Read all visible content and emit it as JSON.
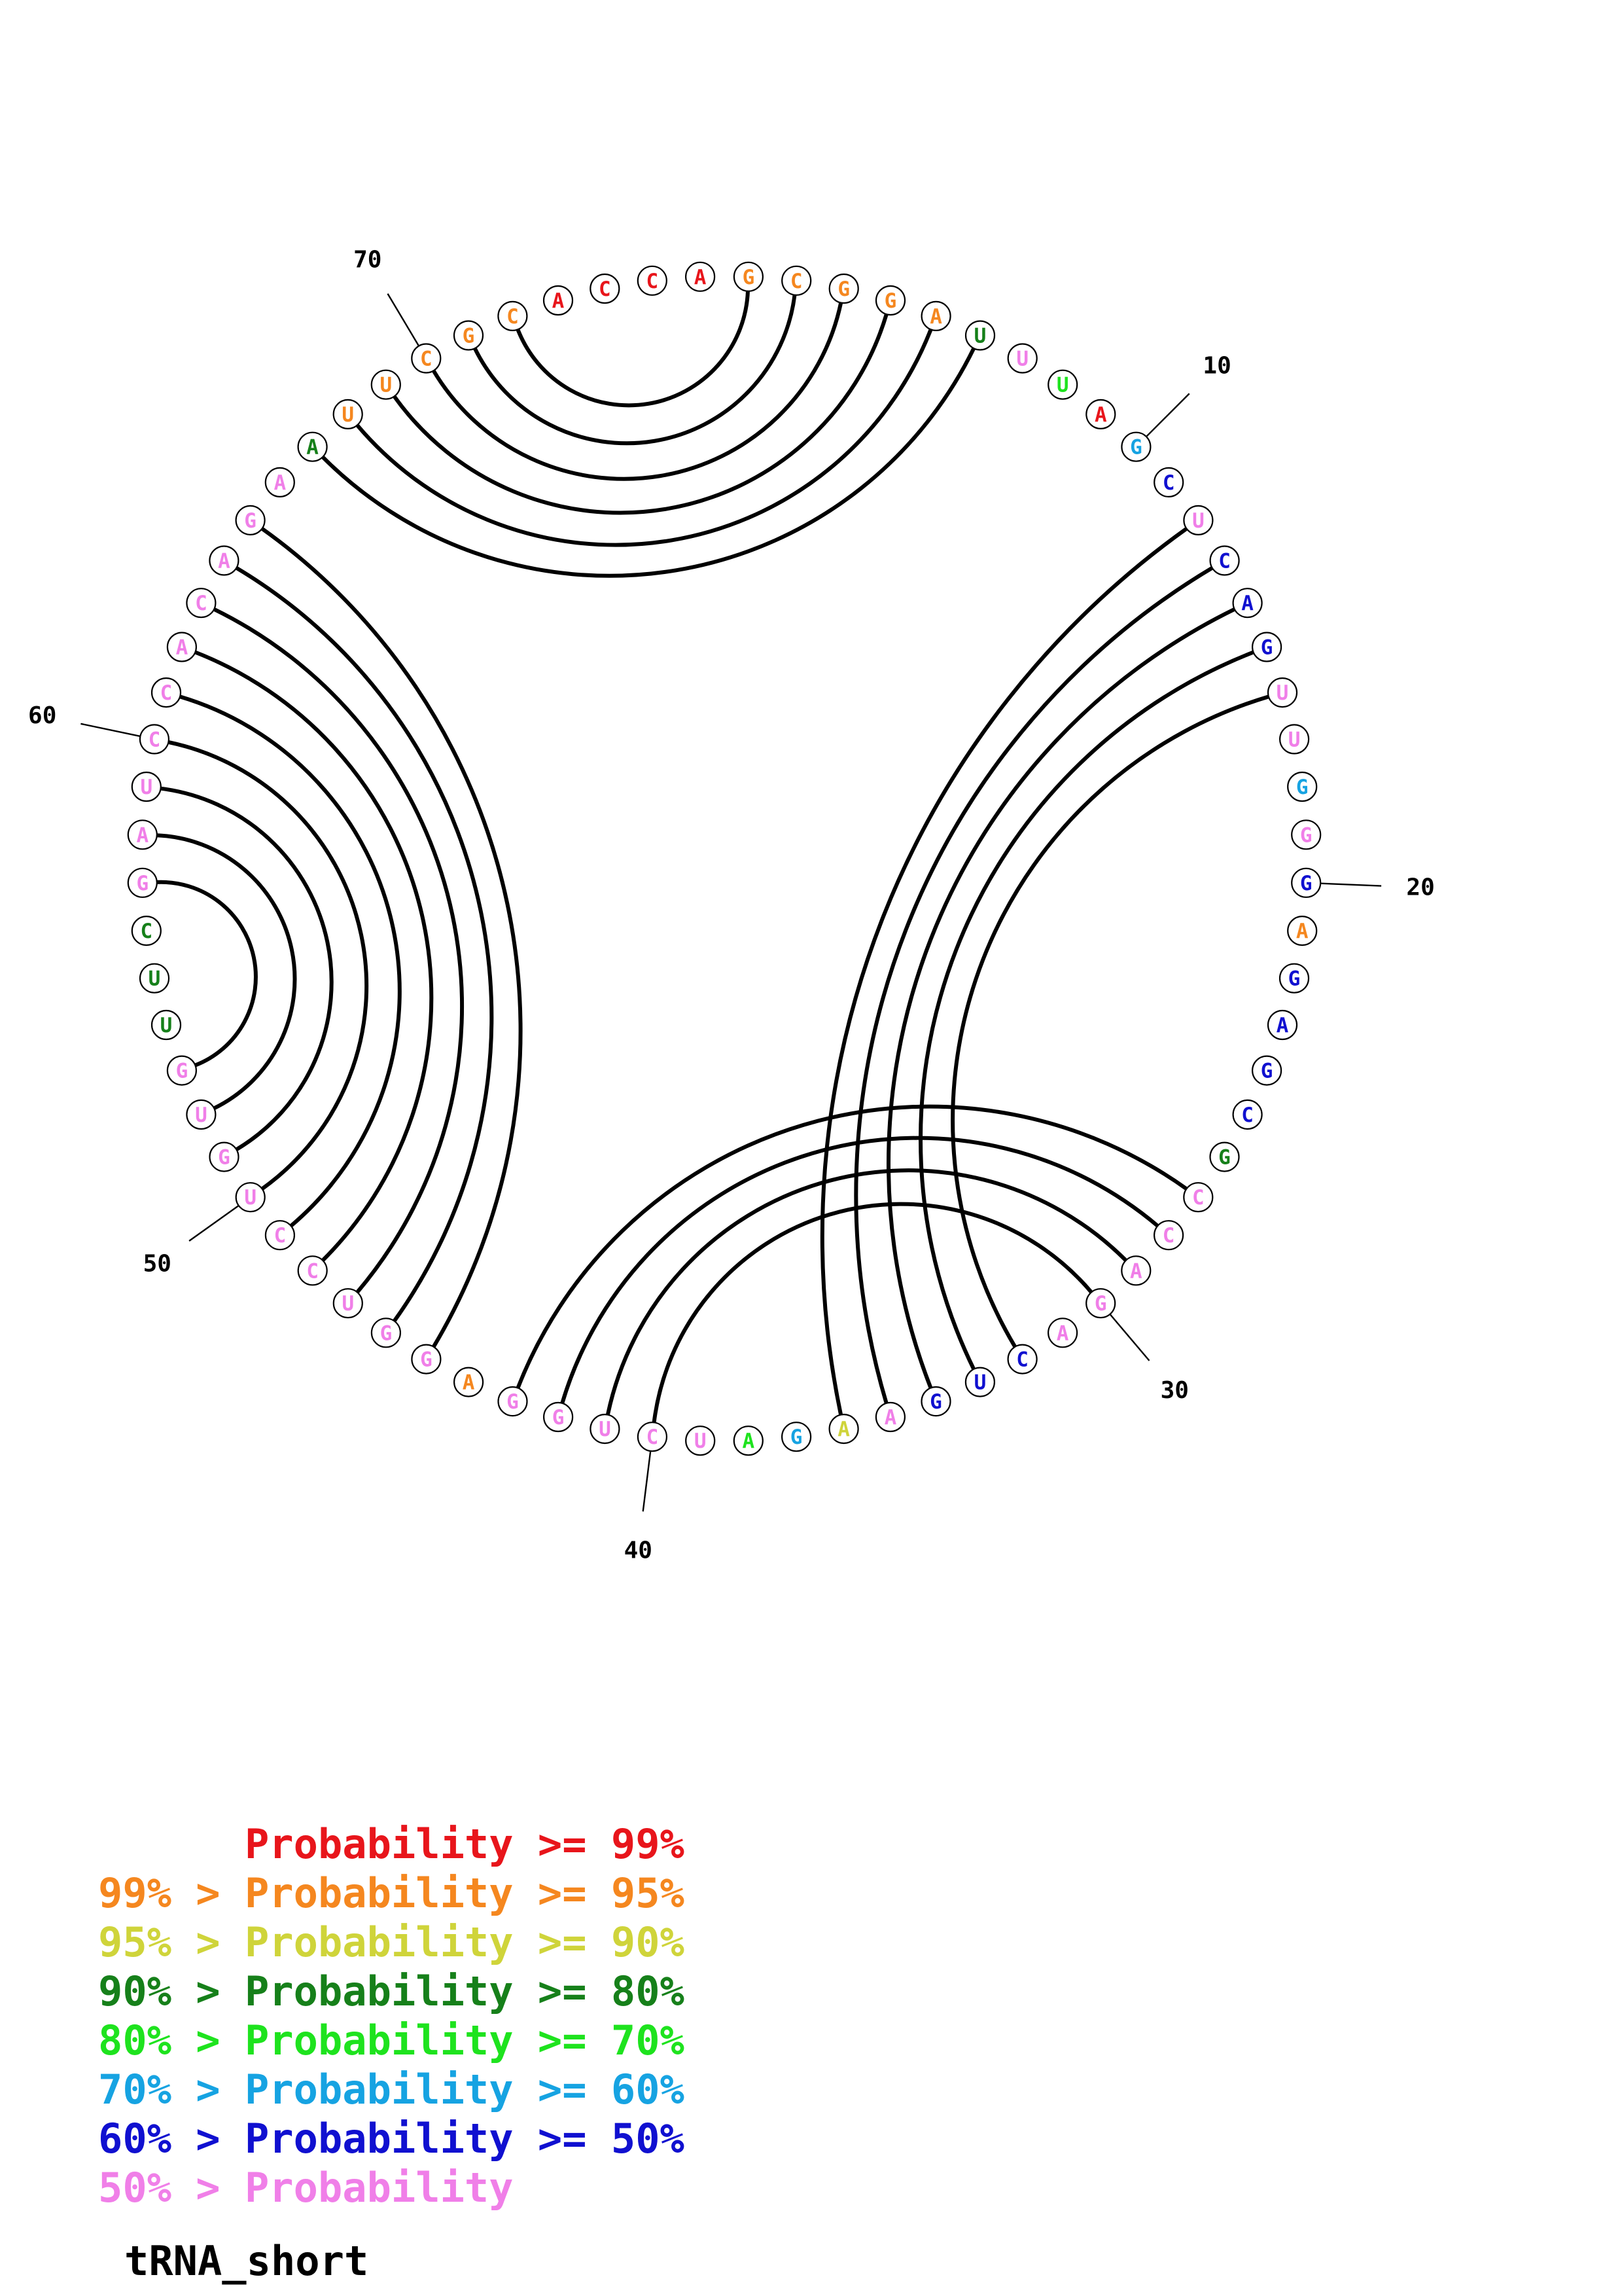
{
  "colors": {
    "p99": "#e8151b",
    "p95": "#f5871f",
    "p90": "#cfd43a",
    "p80": "#16801a",
    "p70": "#1ee31e",
    "p60": "#16a3e2",
    "p50": "#1010d0",
    "p0": "#f07fe8"
  },
  "sequence": {
    "name": "tRNA_short",
    "nucleotides": [
      {
        "n": 1,
        "base": "G",
        "prob": "p95"
      },
      {
        "n": 2,
        "base": "C",
        "prob": "p95"
      },
      {
        "n": 3,
        "base": "G",
        "prob": "p95"
      },
      {
        "n": 4,
        "base": "G",
        "prob": "p95"
      },
      {
        "n": 5,
        "base": "A",
        "prob": "p95"
      },
      {
        "n": 6,
        "base": "U",
        "prob": "p80"
      },
      {
        "n": 7,
        "base": "U",
        "prob": "p0"
      },
      {
        "n": 8,
        "base": "U",
        "prob": "p70"
      },
      {
        "n": 9,
        "base": "A",
        "prob": "p99"
      },
      {
        "n": 10,
        "base": "G",
        "prob": "p60"
      },
      {
        "n": 11,
        "base": "C",
        "prob": "p50"
      },
      {
        "n": 12,
        "base": "U",
        "prob": "p0"
      },
      {
        "n": 13,
        "base": "C",
        "prob": "p50"
      },
      {
        "n": 14,
        "base": "A",
        "prob": "p50"
      },
      {
        "n": 15,
        "base": "G",
        "prob": "p50"
      },
      {
        "n": 16,
        "base": "U",
        "prob": "p0"
      },
      {
        "n": 17,
        "base": "U",
        "prob": "p0"
      },
      {
        "n": 18,
        "base": "G",
        "prob": "p60"
      },
      {
        "n": 19,
        "base": "G",
        "prob": "p0"
      },
      {
        "n": 20,
        "base": "G",
        "prob": "p50"
      },
      {
        "n": 21,
        "base": "A",
        "prob": "p95"
      },
      {
        "n": 22,
        "base": "G",
        "prob": "p50"
      },
      {
        "n": 23,
        "base": "A",
        "prob": "p50"
      },
      {
        "n": 24,
        "base": "G",
        "prob": "p50"
      },
      {
        "n": 25,
        "base": "C",
        "prob": "p50"
      },
      {
        "n": 26,
        "base": "G",
        "prob": "p80"
      },
      {
        "n": 27,
        "base": "C",
        "prob": "p0"
      },
      {
        "n": 28,
        "base": "C",
        "prob": "p0"
      },
      {
        "n": 29,
        "base": "A",
        "prob": "p0"
      },
      {
        "n": 30,
        "base": "G",
        "prob": "p0"
      },
      {
        "n": 31,
        "base": "A",
        "prob": "p0"
      },
      {
        "n": 32,
        "base": "C",
        "prob": "p50"
      },
      {
        "n": 33,
        "base": "U",
        "prob": "p50"
      },
      {
        "n": 34,
        "base": "G",
        "prob": "p50"
      },
      {
        "n": 35,
        "base": "A",
        "prob": "p0"
      },
      {
        "n": 36,
        "base": "A",
        "prob": "p90"
      },
      {
        "n": 37,
        "base": "G",
        "prob": "p60"
      },
      {
        "n": 38,
        "base": "A",
        "prob": "p70"
      },
      {
        "n": 39,
        "base": "U",
        "prob": "p0"
      },
      {
        "n": 40,
        "base": "C",
        "prob": "p0"
      },
      {
        "n": 41,
        "base": "U",
        "prob": "p0"
      },
      {
        "n": 42,
        "base": "G",
        "prob": "p0"
      },
      {
        "n": 43,
        "base": "G",
        "prob": "p0"
      },
      {
        "n": 44,
        "base": "A",
        "prob": "p95"
      },
      {
        "n": 45,
        "base": "G",
        "prob": "p0"
      },
      {
        "n": 46,
        "base": "G",
        "prob": "p0"
      },
      {
        "n": 47,
        "base": "U",
        "prob": "p0"
      },
      {
        "n": 48,
        "base": "C",
        "prob": "p0"
      },
      {
        "n": 49,
        "base": "C",
        "prob": "p0"
      },
      {
        "n": 50,
        "base": "U",
        "prob": "p0"
      },
      {
        "n": 51,
        "base": "G",
        "prob": "p0"
      },
      {
        "n": 52,
        "base": "U",
        "prob": "p0"
      },
      {
        "n": 53,
        "base": "G",
        "prob": "p0"
      },
      {
        "n": 54,
        "base": "U",
        "prob": "p80"
      },
      {
        "n": 55,
        "base": "U",
        "prob": "p80"
      },
      {
        "n": 56,
        "base": "C",
        "prob": "p80"
      },
      {
        "n": 57,
        "base": "G",
        "prob": "p0"
      },
      {
        "n": 58,
        "base": "A",
        "prob": "p0"
      },
      {
        "n": 59,
        "base": "U",
        "prob": "p0"
      },
      {
        "n": 60,
        "base": "C",
        "prob": "p0"
      },
      {
        "n": 61,
        "base": "C",
        "prob": "p0"
      },
      {
        "n": 62,
        "base": "A",
        "prob": "p0"
      },
      {
        "n": 63,
        "base": "C",
        "prob": "p0"
      },
      {
        "n": 64,
        "base": "A",
        "prob": "p0"
      },
      {
        "n": 65,
        "base": "G",
        "prob": "p0"
      },
      {
        "n": 66,
        "base": "A",
        "prob": "p0"
      },
      {
        "n": 67,
        "base": "A",
        "prob": "p80"
      },
      {
        "n": 68,
        "base": "U",
        "prob": "p95"
      },
      {
        "n": 69,
        "base": "U",
        "prob": "p95"
      },
      {
        "n": 70,
        "base": "C",
        "prob": "p95"
      },
      {
        "n": 71,
        "base": "G",
        "prob": "p95"
      },
      {
        "n": 72,
        "base": "C",
        "prob": "p95"
      },
      {
        "n": 73,
        "base": "A",
        "prob": "p99"
      },
      {
        "n": 74,
        "base": "C",
        "prob": "p99"
      },
      {
        "n": 75,
        "base": "C",
        "prob": "p99"
      },
      {
        "n": 76,
        "base": "A",
        "prob": "p99"
      }
    ]
  },
  "pairs": [
    [
      1,
      72
    ],
    [
      2,
      71
    ],
    [
      3,
      70
    ],
    [
      4,
      69
    ],
    [
      5,
      68
    ],
    [
      6,
      67
    ],
    [
      12,
      36
    ],
    [
      13,
      35
    ],
    [
      14,
      34
    ],
    [
      15,
      33
    ],
    [
      16,
      32
    ],
    [
      27,
      43
    ],
    [
      28,
      42
    ],
    [
      29,
      41
    ],
    [
      30,
      40
    ],
    [
      45,
      65
    ],
    [
      46,
      64
    ],
    [
      47,
      63
    ],
    [
      48,
      62
    ],
    [
      49,
      61
    ],
    [
      50,
      60
    ],
    [
      51,
      59
    ],
    [
      52,
      58
    ],
    [
      53,
      57
    ]
  ],
  "tick_labels": [
    {
      "n": 10,
      "text": "10"
    },
    {
      "n": 20,
      "text": "20"
    },
    {
      "n": 30,
      "text": "30"
    },
    {
      "n": 40,
      "text": "40"
    },
    {
      "n": 50,
      "text": "50"
    },
    {
      "n": 60,
      "text": "60"
    },
    {
      "n": 70,
      "text": "70"
    }
  ],
  "legend": [
    {
      "prefix": "    ",
      "label": "Probability >= 99%",
      "color": "p99"
    },
    {
      "prefix": "99% > ",
      "label": "Probability >= 95%",
      "color": "p95"
    },
    {
      "prefix": "95% > ",
      "label": "Probability >= 90%",
      "color": "p90"
    },
    {
      "prefix": "90% > ",
      "label": "Probability >= 80%",
      "color": "p80"
    },
    {
      "prefix": "80% > ",
      "label": "Probability >= 70%",
      "color": "p70"
    },
    {
      "prefix": "70% > ",
      "label": "Probability >= 60%",
      "color": "p60"
    },
    {
      "prefix": "60% > ",
      "label": "Probability >= 50%",
      "color": "p50"
    },
    {
      "prefix": "50% > ",
      "label": "Probability",
      "color": "p0"
    }
  ]
}
